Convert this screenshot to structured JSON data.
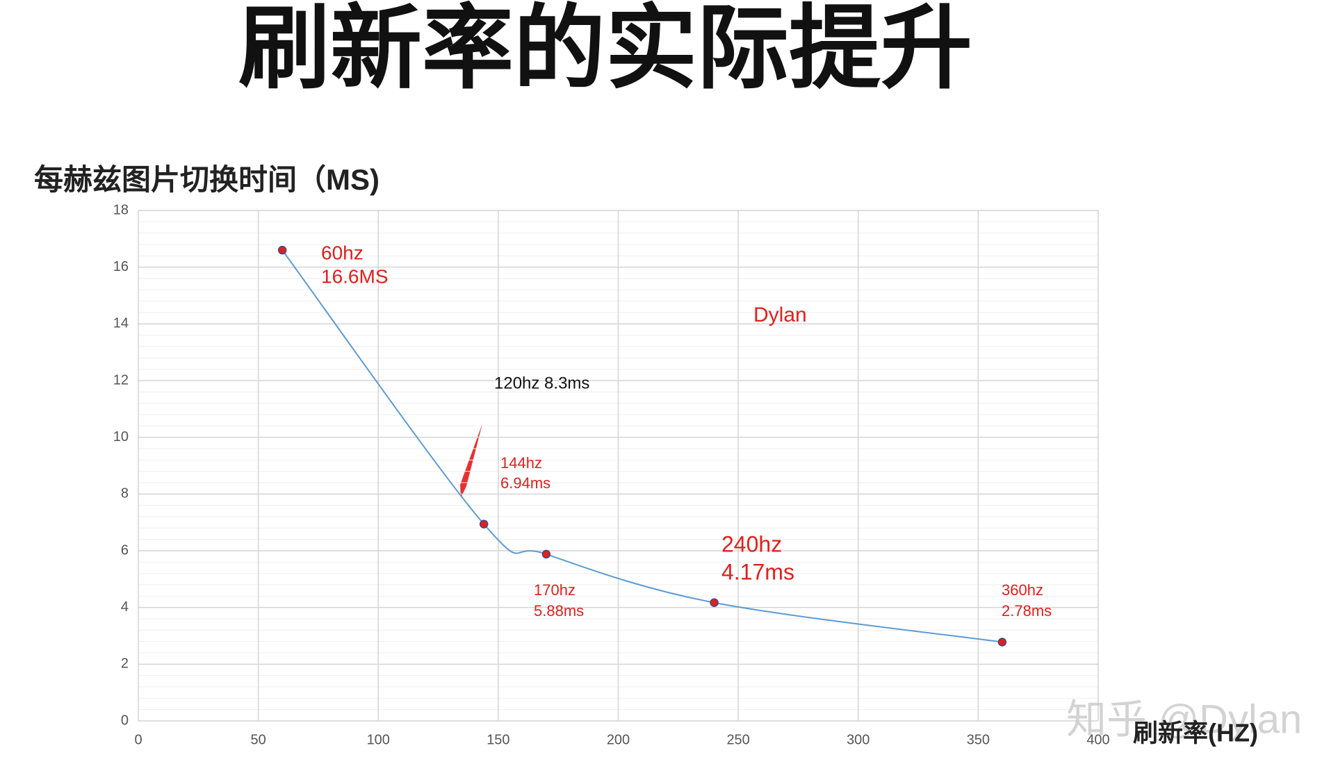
{
  "chart_data": {
    "type": "line",
    "title": "刷新率的实际提升",
    "y_label": "每赫兹图片切换时间（MS)",
    "x_label": "刷新率(HZ)",
    "watermark": "知乎 @Dylan",
    "x": [
      60,
      144,
      170,
      240,
      360
    ],
    "series": [
      {
        "name": "每赫兹图片切换时间",
        "color": "#5b9bd5",
        "marker_color": "#e0201c",
        "values": [
          16.6,
          6.94,
          5.88,
          4.17,
          2.78
        ]
      }
    ],
    "xlim": [
      0,
      400
    ],
    "xticks": [
      0,
      50,
      100,
      150,
      200,
      250,
      300,
      350,
      400
    ],
    "ylim": [
      0,
      18
    ],
    "yticks": [
      0,
      2,
      4,
      6,
      8,
      10,
      12,
      14,
      16,
      18
    ],
    "grid": true,
    "annotations": [
      "60hz",
      "16.6MS",
      "Dylan",
      "120hz 8.3ms",
      "144hz",
      "6.94ms",
      "170hz",
      "5.88ms",
      "240hz",
      "4.17ms",
      "360hz",
      "2.78ms"
    ]
  }
}
